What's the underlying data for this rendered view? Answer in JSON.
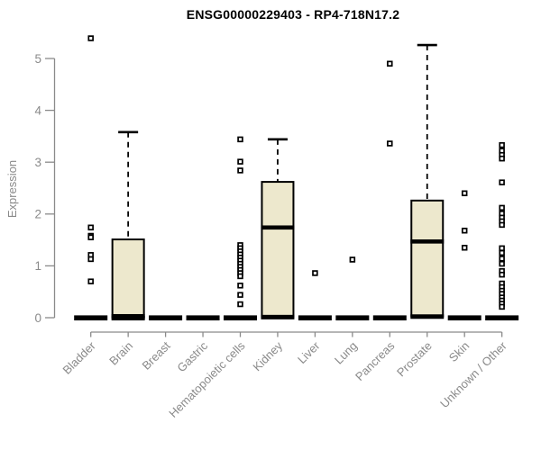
{
  "page": {
    "background": "#ffffff"
  },
  "chart_data": {
    "type": "boxplot",
    "title": "ENSG00000229403 - RP4-718N17.2",
    "ylabel": "Expression",
    "xlabel": "",
    "ylim": [
      0,
      5.5
    ],
    "yticks": [
      0,
      1,
      2,
      3,
      4,
      5
    ],
    "grid": false,
    "legend": "none",
    "colors": {
      "box_fill": "#ede8cd",
      "box_stroke": "#000000",
      "median": "#000000",
      "whisker": "#000000",
      "outlier_stroke": "#000000",
      "outlier_fill": "#ffffff",
      "axis": "#8a8a8a",
      "tick_label": "#8a8a8a",
      "title": "#000000"
    },
    "categories": [
      "Bladder",
      "Brain",
      "Breast",
      "Gastric",
      "Hematopoietic cells",
      "Kidney",
      "Liver",
      "Lung",
      "Pancreas",
      "Prostate",
      "Skin",
      "Unknown / Other"
    ],
    "series": [
      {
        "label": "Bladder",
        "q1": 0,
        "median": 0,
        "q3": 0,
        "whisker_low": 0,
        "whisker_high": 0,
        "outliers": [
          5.39,
          1.74,
          1.58,
          1.55,
          1.21,
          1.13,
          0.7
        ]
      },
      {
        "label": "Brain",
        "q1": 0,
        "median": 0.03,
        "q3": 1.51,
        "whisker_low": 0,
        "whisker_high": 3.58,
        "outliers": []
      },
      {
        "label": "Breast",
        "q1": 0,
        "median": 0,
        "q3": 0,
        "whisker_low": 0,
        "whisker_high": 0,
        "outliers": []
      },
      {
        "label": "Gastric",
        "q1": 0,
        "median": 0,
        "q3": 0,
        "whisker_low": 0,
        "whisker_high": 0,
        "outliers": []
      },
      {
        "label": "Hematopoietic cells",
        "q1": 0,
        "median": 0,
        "q3": 0,
        "whisker_low": 0,
        "whisker_high": 0,
        "outliers": [
          3.44,
          3.01,
          2.84,
          1.4,
          1.34,
          1.28,
          1.22,
          1.16,
          1.1,
          1.04,
          0.98,
          0.92,
          0.86,
          0.8,
          0.62,
          0.44,
          0.26
        ]
      },
      {
        "label": "Kidney",
        "q1": 0.02,
        "median": 1.74,
        "q3": 2.62,
        "whisker_low": 0,
        "whisker_high": 3.44,
        "outliers": []
      },
      {
        "label": "Liver",
        "q1": 0,
        "median": 0,
        "q3": 0,
        "whisker_low": 0,
        "whisker_high": 0,
        "outliers": [
          0.86
        ]
      },
      {
        "label": "Lung",
        "q1": 0,
        "median": 0,
        "q3": 0,
        "whisker_low": 0,
        "whisker_high": 0,
        "outliers": [
          1.12
        ]
      },
      {
        "label": "Pancreas",
        "q1": 0,
        "median": 0,
        "q3": 0,
        "whisker_low": 0,
        "whisker_high": 0,
        "outliers": [
          4.9,
          3.36
        ]
      },
      {
        "label": "Prostate",
        "q1": 0.03,
        "median": 1.47,
        "q3": 2.26,
        "whisker_low": 0,
        "whisker_high": 5.26,
        "outliers": []
      },
      {
        "label": "Skin",
        "q1": 0,
        "median": 0,
        "q3": 0,
        "whisker_low": 0,
        "whisker_high": 0,
        "outliers": [
          2.4,
          1.68,
          1.35
        ]
      },
      {
        "label": "Unknown / Other",
        "q1": 0,
        "median": 0,
        "q3": 0,
        "whisker_low": 0,
        "whisker_high": 0,
        "outliers": [
          3.33,
          3.22,
          3.14,
          3.07,
          2.61,
          2.12,
          2.01,
          1.93,
          1.86,
          1.79,
          1.34,
          1.25,
          1.14,
          1.04,
          0.9,
          0.83,
          0.66,
          0.59,
          0.52,
          0.46,
          0.39,
          0.33,
          0.27,
          0.21
        ]
      }
    ]
  }
}
